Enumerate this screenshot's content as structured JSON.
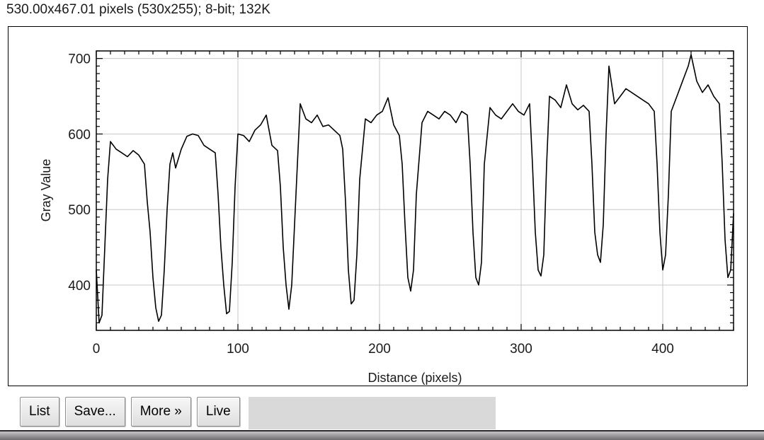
{
  "window": {
    "info_line": "530.00x467.01 pixels (530x255); 8-bit; 132K"
  },
  "buttons": {
    "list": "List",
    "save": "Save...",
    "more": "More »",
    "live": "Live"
  },
  "chart_data": {
    "type": "line",
    "title": "",
    "xlabel": "Distance (pixels)",
    "ylabel": "Gray Value",
    "xlim": [
      0,
      450
    ],
    "ylim": [
      340,
      710
    ],
    "x_ticks": [
      0,
      100,
      200,
      300,
      400
    ],
    "y_ticks": [
      400,
      500,
      600,
      700
    ],
    "grid": true,
    "line_color": "#000000",
    "grid_color": "#c8c8c8",
    "x": [
      0,
      2,
      4,
      6,
      8,
      10,
      14,
      18,
      22,
      26,
      30,
      34,
      36,
      38,
      40,
      42,
      44,
      46,
      48,
      50,
      52,
      54,
      56,
      60,
      64,
      68,
      72,
      76,
      80,
      84,
      86,
      88,
      90,
      92,
      94,
      96,
      98,
      100,
      104,
      108,
      112,
      116,
      120,
      124,
      128,
      130,
      132,
      134,
      136,
      138,
      140,
      142,
      144,
      148,
      152,
      156,
      160,
      164,
      168,
      172,
      174,
      176,
      178,
      180,
      182,
      184,
      186,
      190,
      194,
      198,
      202,
      206,
      210,
      214,
      216,
      218,
      220,
      222,
      224,
      226,
      230,
      234,
      238,
      242,
      246,
      250,
      254,
      258,
      262,
      264,
      266,
      268,
      270,
      272,
      274,
      278,
      282,
      286,
      290,
      294,
      298,
      302,
      306,
      308,
      310,
      312,
      314,
      316,
      318,
      320,
      324,
      328,
      332,
      336,
      340,
      344,
      348,
      350,
      352,
      354,
      356,
      358,
      360,
      362,
      366,
      370,
      374,
      378,
      382,
      386,
      390,
      394,
      396,
      398,
      400,
      402,
      404,
      406,
      410,
      414,
      418,
      420,
      424,
      428,
      432,
      436,
      440,
      442,
      444,
      446,
      448,
      450
    ],
    "values": [
      420,
      350,
      360,
      450,
      540,
      590,
      580,
      575,
      570,
      578,
      572,
      560,
      510,
      470,
      410,
      370,
      352,
      360,
      420,
      500,
      560,
      575,
      555,
      580,
      597,
      600,
      598,
      585,
      580,
      575,
      520,
      450,
      400,
      362,
      365,
      430,
      530,
      600,
      598,
      590,
      605,
      612,
      625,
      585,
      578,
      530,
      450,
      400,
      368,
      400,
      480,
      560,
      640,
      620,
      615,
      625,
      610,
      612,
      605,
      598,
      580,
      510,
      420,
      375,
      380,
      440,
      540,
      620,
      615,
      625,
      630,
      648,
      612,
      598,
      560,
      480,
      410,
      392,
      420,
      520,
      615,
      630,
      625,
      620,
      630,
      625,
      615,
      630,
      625,
      560,
      470,
      410,
      400,
      430,
      560,
      635,
      625,
      620,
      630,
      640,
      630,
      625,
      640,
      560,
      470,
      420,
      412,
      440,
      560,
      650,
      645,
      635,
      665,
      640,
      632,
      638,
      630,
      560,
      470,
      440,
      430,
      480,
      600,
      690,
      640,
      650,
      660,
      655,
      650,
      645,
      640,
      630,
      560,
      470,
      420,
      440,
      520,
      630,
      650,
      670,
      690,
      705,
      670,
      655,
      665,
      650,
      640,
      560,
      460,
      410,
      420,
      495
    ]
  }
}
